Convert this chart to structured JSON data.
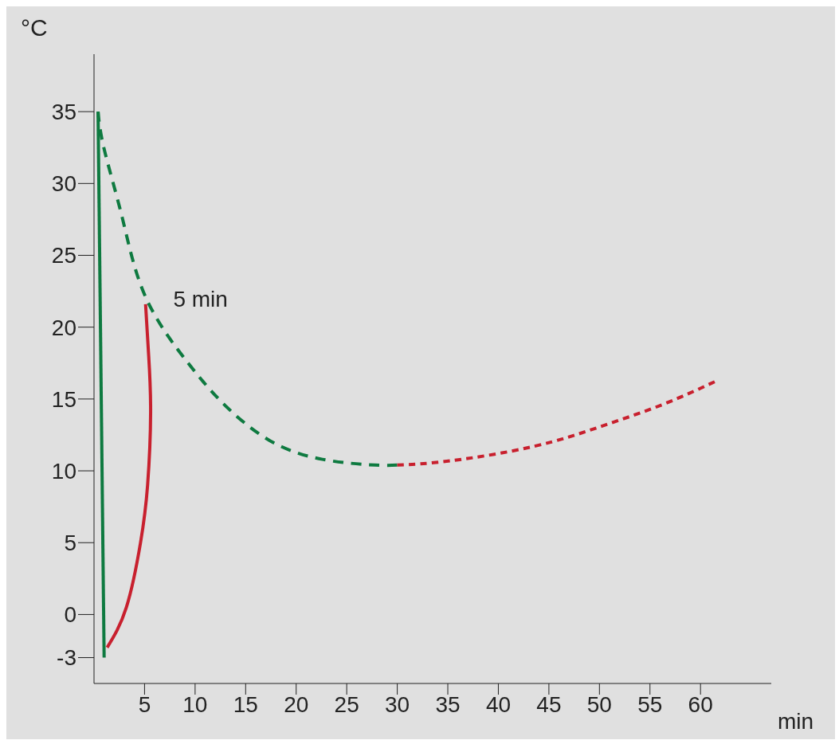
{
  "chart_data": {
    "type": "line",
    "xlabel": "min",
    "ylabel": "°C",
    "xlim": [
      0,
      67
    ],
    "ylim": [
      -4.8,
      39
    ],
    "xticks": [
      5,
      10,
      15,
      20,
      25,
      30,
      35,
      40,
      45,
      50,
      55,
      60
    ],
    "yticks": [
      -3,
      0,
      5,
      10,
      15,
      20,
      25,
      30,
      35
    ],
    "grid": false,
    "legend": false,
    "marker": "none",
    "annotations": [
      {
        "text": "5 min",
        "x": 5,
        "y": 22
      }
    ],
    "series": [
      {
        "color": "#0e7a40",
        "line_style": "solid",
        "x": [
          0.4,
          1
        ],
        "values": [
          35,
          -3
        ]
      },
      {
        "color": "#0e7a40",
        "line_style": "dashed",
        "x": [
          0.4,
          1,
          2.8,
          5.1,
          9.2,
          12.9,
          17.4,
          22.6,
          27.8,
          30
        ],
        "values": [
          35,
          32.4,
          27.6,
          22.1,
          17.6,
          14.6,
          12.1,
          10.8,
          10.4,
          10.4
        ]
      },
      {
        "color": "#c8202e",
        "line_style": "solid",
        "x": [
          1.3,
          3.2,
          4.6,
          5.3,
          5.6,
          5.4,
          5.1
        ],
        "values": [
          -2.3,
          0.5,
          5,
          9,
          14.1,
          18.1,
          21.6
        ]
      },
      {
        "color": "#c8202e",
        "line_style": "dashed",
        "x": [
          30,
          35.3,
          43.5,
          50.2,
          56.2,
          61.4
        ],
        "values": [
          10.4,
          10.7,
          11.7,
          13.1,
          14.6,
          16.2
        ]
      }
    ]
  }
}
